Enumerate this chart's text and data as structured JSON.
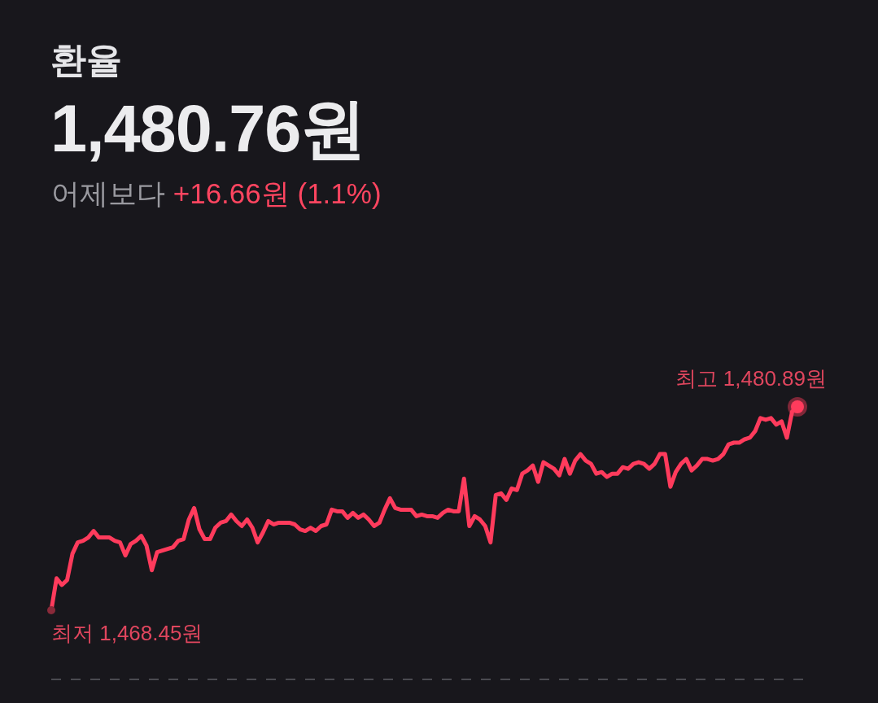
{
  "chart_data": {
    "type": "line",
    "title": "환율",
    "subtitle": "1,480.76원",
    "categories": [
      null,
      null,
      null,
      null,
      null,
      null,
      null,
      null,
      null,
      null,
      null,
      null,
      null,
      null,
      null,
      null,
      null,
      null,
      null,
      null,
      null,
      null,
      null,
      null,
      null,
      null,
      null,
      null,
      null,
      null,
      null,
      null,
      null,
      null,
      null,
      null,
      null,
      null,
      null,
      null,
      null,
      null,
      null,
      null,
      null,
      null,
      null,
      null,
      null,
      null,
      null,
      null,
      null,
      null,
      null,
      null,
      null,
      null,
      null,
      null,
      null,
      null,
      null,
      null,
      null,
      null,
      null,
      null,
      null,
      null,
      null,
      null,
      null,
      null,
      null,
      null,
      null,
      null,
      null,
      null,
      null,
      null,
      null,
      null,
      null,
      null,
      null,
      null,
      null,
      null,
      null,
      null,
      null,
      null,
      null,
      null,
      null,
      null,
      null,
      null,
      null,
      null,
      null,
      null,
      null,
      null,
      null,
      null,
      null,
      null,
      null,
      null,
      null,
      null,
      null,
      null,
      null,
      null,
      null,
      null,
      null,
      null,
      null,
      null,
      null,
      null,
      null,
      null,
      null,
      null,
      null,
      null,
      null,
      null,
      null,
      null,
      null,
      null,
      null,
      null,
      null,
      null
    ],
    "color": "#ff3b5c",
    "values": [
      1468.45,
      1470.4,
      1470.0,
      1470.3,
      1471.9,
      1472.6,
      1472.7,
      1472.9,
      1473.3,
      1472.9,
      1472.9,
      1472.9,
      1472.7,
      1472.6,
      1471.8,
      1472.5,
      1472.7,
      1473.0,
      1472.4,
      1470.9,
      1472.0,
      1472.1,
      1472.2,
      1472.3,
      1472.7,
      1472.8,
      1474.0,
      1474.7,
      1473.4,
      1472.8,
      1472.8,
      1473.5,
      1473.8,
      1473.9,
      1474.3,
      1473.9,
      1473.6,
      1474.0,
      1473.5,
      1472.6,
      1473.2,
      1473.9,
      1473.7,
      1473.8,
      1473.8,
      1473.8,
      1473.7,
      1473.4,
      1473.3,
      1473.5,
      1473.3,
      1473.6,
      1473.7,
      1474.6,
      1474.5,
      1474.5,
      1474.1,
      1474.4,
      1474.1,
      1474.3,
      1474.0,
      1473.6,
      1473.8,
      1474.6,
      1475.3,
      1474.7,
      1474.6,
      1474.6,
      1474.6,
      1474.2,
      1474.3,
      1474.2,
      1474.2,
      1474.1,
      1474.4,
      1474.6,
      1474.5,
      1474.5,
      1476.5,
      1473.6,
      1474.2,
      1474.0,
      1473.6,
      1472.6,
      1475.5,
      1475.6,
      1475.2,
      1475.9,
      1475.8,
      1476.8,
      1477.0,
      1477.3,
      1476.3,
      1477.5,
      1477.3,
      1477.1,
      1476.7,
      1477.7,
      1476.8,
      1477.6,
      1478.0,
      1477.6,
      1477.4,
      1476.8,
      1476.9,
      1476.6,
      1476.8,
      1476.8,
      1477.2,
      1477.1,
      1477.4,
      1477.5,
      1477.4,
      1477.1,
      1477.4,
      1478.0,
      1478.0,
      1476.0,
      1476.9,
      1477.4,
      1477.7,
      1477.0,
      1477.3,
      1477.7,
      1477.7,
      1477.6,
      1477.7,
      1478.0,
      1478.6,
      1478.7,
      1478.7,
      1478.9,
      1479.0,
      1479.4,
      1480.2,
      1480.1,
      1480.2,
      1479.8,
      1480.0,
      1479.0,
      1480.6,
      1480.89
    ],
    "value_labels": [
      "최저 1,468.45원",
      null,
      null,
      null,
      null,
      null,
      null,
      null,
      null,
      null,
      null,
      null,
      null,
      null,
      null,
      null,
      null,
      null,
      null,
      null,
      null,
      null,
      null,
      null,
      null,
      null,
      null,
      null,
      null,
      null,
      null,
      null,
      null,
      null,
      null,
      null,
      null,
      null,
      null,
      null,
      null,
      null,
      null,
      null,
      null,
      null,
      null,
      null,
      null,
      null,
      null,
      null,
      null,
      null,
      null,
      null,
      null,
      null,
      null,
      null,
      null,
      null,
      null,
      null,
      null,
      null,
      null,
      null,
      null,
      null,
      null,
      null,
      null,
      null,
      null,
      null,
      null,
      null,
      null,
      null,
      null,
      null,
      null,
      null,
      null,
      null,
      null,
      null,
      null,
      null,
      null,
      null,
      null,
      null,
      null,
      null,
      null,
      null,
      null,
      null,
      null,
      null,
      null,
      null,
      null,
      null,
      null,
      null,
      null,
      null,
      null,
      null,
      null,
      null,
      null,
      null,
      null,
      null,
      null,
      null,
      null,
      null,
      null,
      null,
      null,
      null,
      null,
      null,
      null,
      null,
      null,
      null,
      null,
      null,
      null,
      null,
      null,
      null,
      null,
      null,
      null,
      "최고 1,480.89원"
    ],
    "annotations": [
      "어제보다",
      "+16.66원 (1.1%)"
    ]
  }
}
